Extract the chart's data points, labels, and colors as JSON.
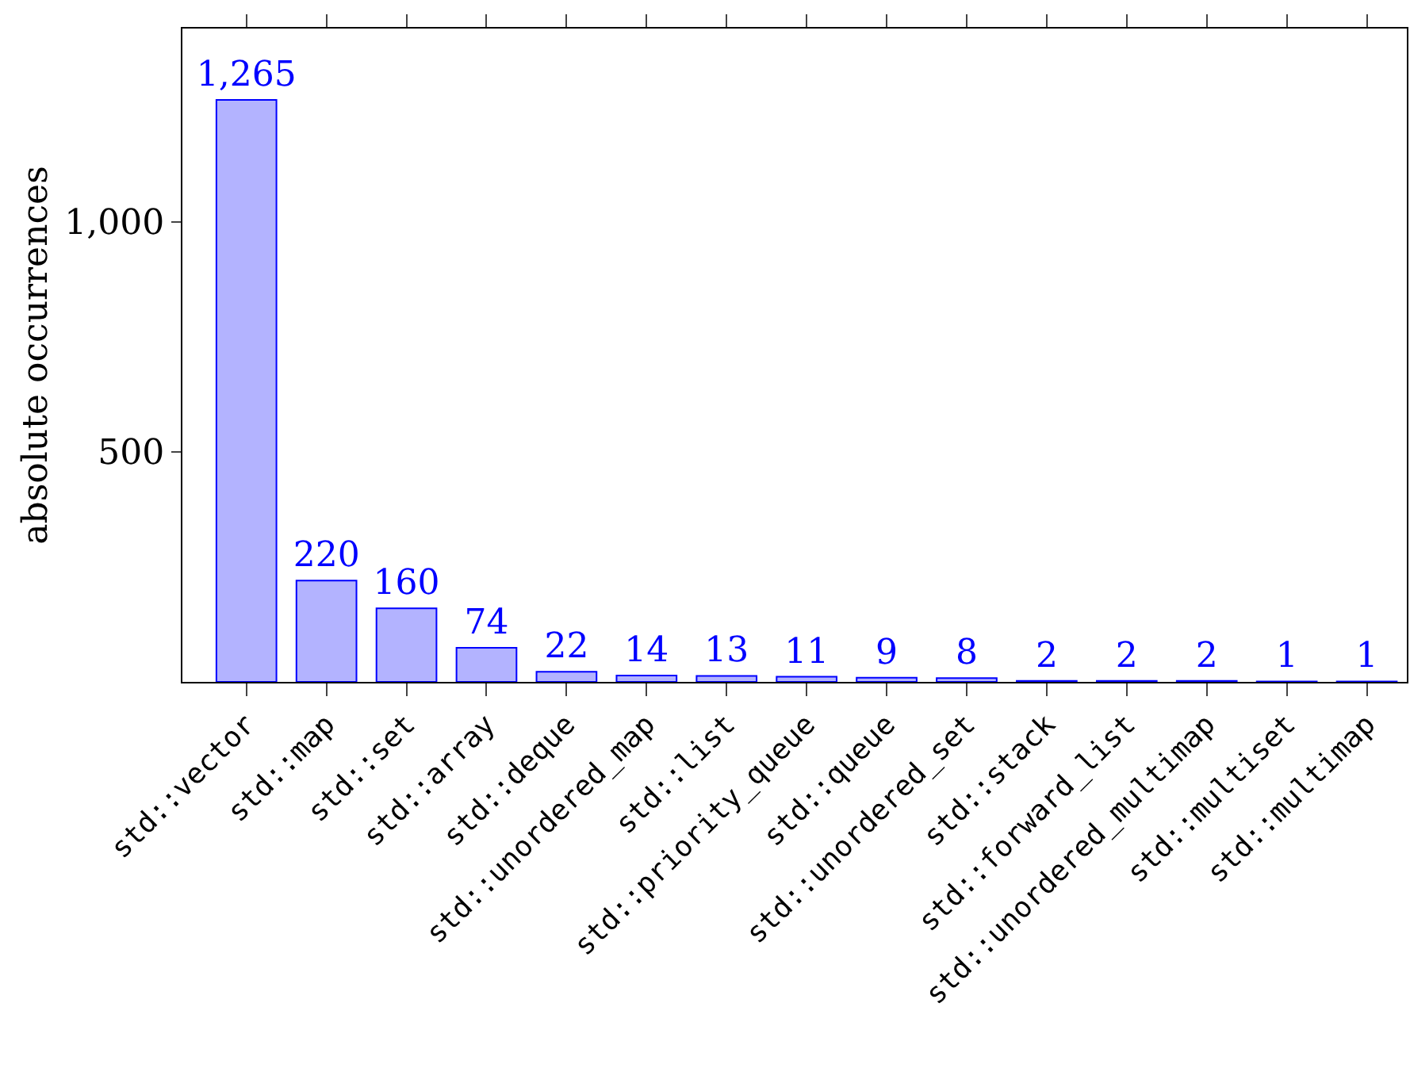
{
  "chart_data": {
    "type": "bar",
    "ylabel": "absolute occurrences",
    "categories": [
      "std::vector",
      "std::map",
      "std::set",
      "std::array",
      "std::deque",
      "std::unordered_map",
      "std::list",
      "std::priority_queue",
      "std::queue",
      "std::unordered_set",
      "std::stack",
      "std::forward_list",
      "std::unordered_multimap",
      "std::multiset",
      "std::multimap"
    ],
    "values": [
      1265,
      220,
      160,
      74,
      22,
      14,
      13,
      11,
      9,
      8,
      2,
      2,
      2,
      1,
      1
    ],
    "value_labels": [
      "1,265",
      "220",
      "160",
      "74",
      "22",
      "14",
      "13",
      "11",
      "9",
      "8",
      "2",
      "2",
      "2",
      "1",
      "1"
    ],
    "color": "#b3b3ff",
    "ylim": [
      0,
      1420
    ],
    "yticks": [
      {
        "value": 500,
        "label": "500"
      },
      {
        "value": 1000,
        "label": "1,000"
      }
    ],
    "grid": false,
    "legend": false
  }
}
